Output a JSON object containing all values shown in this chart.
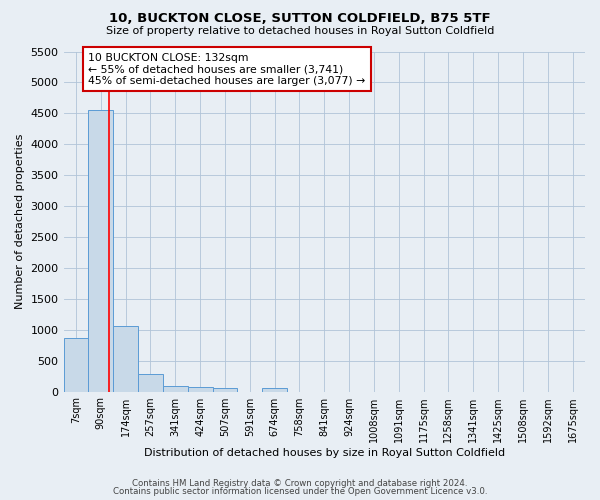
{
  "title": "10, BUCKTON CLOSE, SUTTON COLDFIELD, B75 5TF",
  "subtitle": "Size of property relative to detached houses in Royal Sutton Coldfield",
  "xlabel": "Distribution of detached houses by size in Royal Sutton Coldfield",
  "ylabel": "Number of detached properties",
  "footer1": "Contains HM Land Registry data © Crown copyright and database right 2024.",
  "footer2": "Contains public sector information licensed under the Open Government Licence v3.0.",
  "categories": [
    "7sqm",
    "90sqm",
    "174sqm",
    "257sqm",
    "341sqm",
    "424sqm",
    "507sqm",
    "591sqm",
    "674sqm",
    "758sqm",
    "841sqm",
    "924sqm",
    "1008sqm",
    "1091sqm",
    "1175sqm",
    "1258sqm",
    "1341sqm",
    "1425sqm",
    "1508sqm",
    "1592sqm",
    "1675sqm"
  ],
  "values": [
    870,
    4560,
    1060,
    285,
    95,
    78,
    60,
    0,
    50,
    0,
    0,
    0,
    0,
    0,
    0,
    0,
    0,
    0,
    0,
    0,
    0
  ],
  "bar_color": "#c8d9e8",
  "bar_edge_color": "#5b9bd5",
  "bar_width": 1.0,
  "ylim": [
    0,
    5500
  ],
  "yticks": [
    0,
    500,
    1000,
    1500,
    2000,
    2500,
    3000,
    3500,
    4000,
    4500,
    5000,
    5500
  ],
  "red_line_x": 1.35,
  "annotation_title": "10 BUCKTON CLOSE: 132sqm",
  "annotation_line1": "← 55% of detached houses are smaller (3,741)",
  "annotation_line2": "45% of semi-detached houses are larger (3,077) →",
  "annotation_box_color": "#ffffff",
  "annotation_box_edge": "#cc0000",
  "grid_color": "#b0c4d8",
  "background_color": "#e8eef4"
}
